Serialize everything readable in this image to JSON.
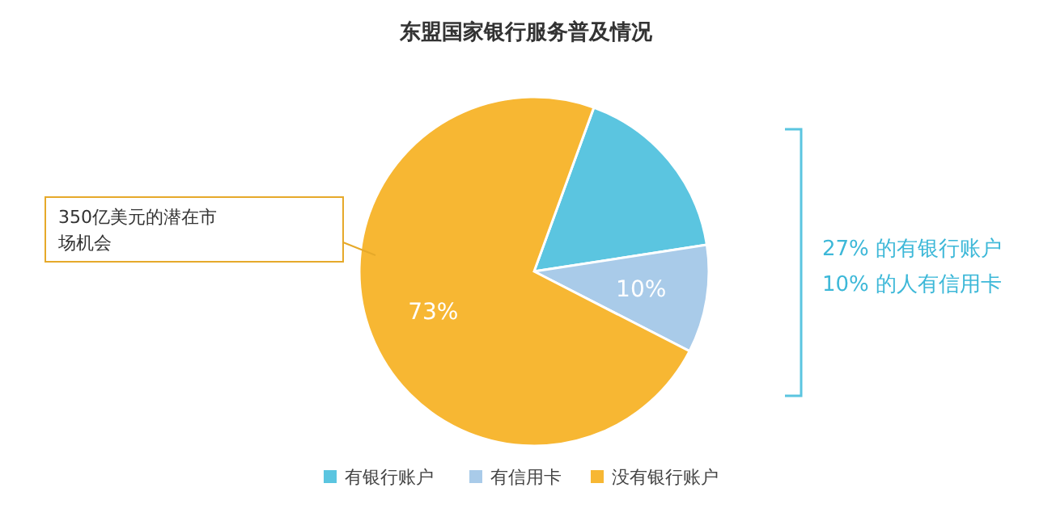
{
  "chart_data": {
    "type": "pie",
    "title": "东盟国家银行服务普及情况",
    "categories": [
      "有银行账户",
      "有信用卡",
      "没有银行账户"
    ],
    "values": [
      17,
      10,
      73
    ],
    "colors": [
      "#5bc5e0",
      "#a9cbe9",
      "#f7b733"
    ],
    "value_labels": [
      null,
      "10%",
      "73%"
    ],
    "legend": "bottom",
    "annotations": [
      "350亿美元的潜在市场机会",
      "27% 的有银行账户",
      "10% 的人有信用卡"
    ]
  }
}
